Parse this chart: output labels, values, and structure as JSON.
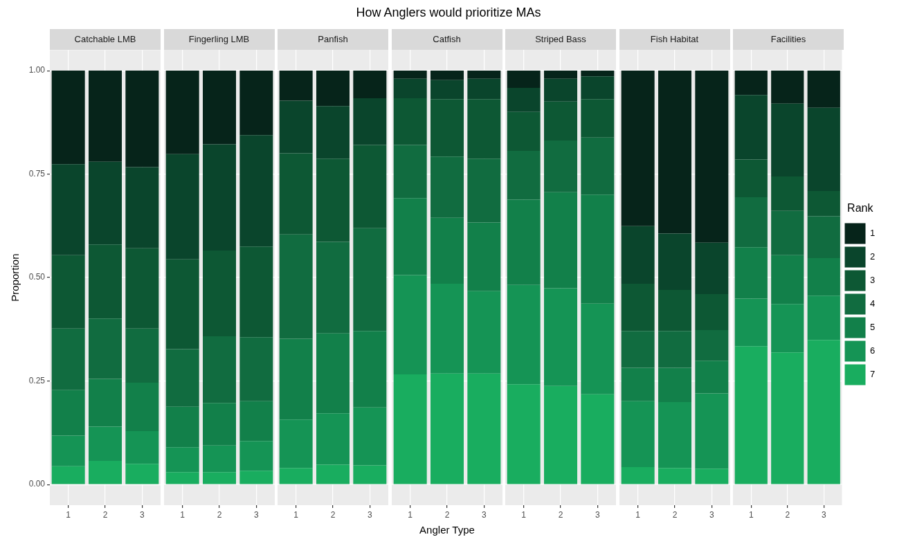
{
  "chart_data": [
    {
      "type": "bar",
      "title": "Catchable LMB",
      "ylabel": "Proportion",
      "categories": [
        "1",
        "2",
        "3"
      ],
      "stacked": true,
      "grid": true,
      "ylim": [
        -0.05,
        1.05
      ],
      "yticks": [
        {
          "value": 0,
          "label": "0.00"
        },
        {
          "value": 0.25,
          "label": "0.25"
        },
        {
          "value": 0.5,
          "label": "0.50"
        },
        {
          "value": 0.75,
          "label": "0.75"
        },
        {
          "value": 1,
          "label": "1.00"
        }
      ],
      "series": [
        {
          "color": "#19ad5f",
          "values": [
            0.044,
            0.057,
            0.05
          ]
        },
        {
          "color": "#159455",
          "values": [
            0.074,
            0.083,
            0.079
          ]
        },
        {
          "color": "#12804a",
          "values": [
            0.11,
            0.115,
            0.117
          ]
        },
        {
          "color": "#116c40",
          "values": [
            0.149,
            0.146,
            0.131
          ]
        },
        {
          "color": "#0d5834",
          "values": [
            0.177,
            0.179,
            0.194
          ]
        },
        {
          "color": "#0a452c",
          "values": [
            0.22,
            0.2,
            0.196
          ]
        },
        {
          "color": "#06241a",
          "values": [
            0.226,
            0.22,
            0.233
          ]
        }
      ]
    },
    {
      "type": "bar",
      "title": "Fingerling LMB",
      "categories": [
        "1",
        "2",
        "3"
      ],
      "stacked": true,
      "grid": true,
      "tick_labels": "x",
      "ylim": [
        -0.05,
        1.05
      ],
      "yticks": [
        0,
        0.25,
        0.5,
        0.75,
        1
      ],
      "series": [
        {
          "color": "#19ad5f",
          "values": [
            0.03,
            0.03,
            0.033
          ]
        },
        {
          "color": "#159455",
          "values": [
            0.06,
            0.064,
            0.072
          ]
        },
        {
          "color": "#12804a",
          "values": [
            0.098,
            0.103,
            0.096
          ]
        },
        {
          "color": "#116c40",
          "values": [
            0.139,
            0.161,
            0.155
          ]
        },
        {
          "color": "#0d5834",
          "values": [
            0.217,
            0.207,
            0.219
          ]
        },
        {
          "color": "#0a452c",
          "values": [
            0.254,
            0.257,
            0.269
          ]
        },
        {
          "color": "#06241a",
          "values": [
            0.202,
            0.178,
            0.156
          ]
        }
      ]
    },
    {
      "type": "bar",
      "title": "Panfish",
      "categories": [
        "1",
        "2",
        "3"
      ],
      "stacked": true,
      "grid": true,
      "tick_labels": "x",
      "ylim": [
        -0.05,
        1.05
      ],
      "yticks": [
        0,
        0.25,
        0.5,
        0.75,
        1
      ],
      "series": [
        {
          "color": "#19ad5f",
          "values": [
            0.04,
            0.048,
            0.046
          ]
        },
        {
          "color": "#159455",
          "values": [
            0.117,
            0.124,
            0.14
          ]
        },
        {
          "color": "#12804a",
          "values": [
            0.195,
            0.193,
            0.185
          ]
        },
        {
          "color": "#116c40",
          "values": [
            0.252,
            0.221,
            0.248
          ]
        },
        {
          "color": "#0d5834",
          "values": [
            0.196,
            0.201,
            0.201
          ]
        },
        {
          "color": "#0a452c",
          "values": [
            0.127,
            0.127,
            0.113
          ]
        },
        {
          "color": "#06241a",
          "values": [
            0.073,
            0.086,
            0.067
          ]
        }
      ]
    },
    {
      "type": "bar",
      "title": "Catfish",
      "xlabel": "Angler Type",
      "annotations": [
        "How Anglers would prioritize MAs"
      ],
      "categories": [
        "1",
        "2",
        "3"
      ],
      "stacked": true,
      "grid": true,
      "tick_labels": "x",
      "ylim": [
        -0.05,
        1.05
      ],
      "yticks": [
        0,
        0.25,
        0.5,
        0.75,
        1
      ],
      "series": [
        {
          "color": "#19ad5f",
          "values": [
            0.266,
            0.268,
            0.268
          ]
        },
        {
          "color": "#159455",
          "values": [
            0.24,
            0.217,
            0.199
          ]
        },
        {
          "color": "#12804a",
          "values": [
            0.186,
            0.159,
            0.166
          ]
        },
        {
          "color": "#116c40",
          "values": [
            0.128,
            0.148,
            0.154
          ]
        },
        {
          "color": "#0d5834",
          "values": [
            0.113,
            0.139,
            0.144
          ]
        },
        {
          "color": "#0a452c",
          "values": [
            0.047,
            0.046,
            0.049
          ]
        },
        {
          "color": "#06241a",
          "values": [
            0.02,
            0.023,
            0.02
          ]
        }
      ]
    },
    {
      "type": "bar",
      "title": "Striped Bass",
      "categories": [
        "1",
        "2",
        "3"
      ],
      "stacked": true,
      "grid": true,
      "tick_labels": "x",
      "ylim": [
        -0.05,
        1.05
      ],
      "yticks": [
        0,
        0.25,
        0.5,
        0.75,
        1
      ],
      "series": [
        {
          "color": "#19ad5f",
          "values": [
            0.242,
            0.238,
            0.218
          ]
        },
        {
          "color": "#159455",
          "values": [
            0.24,
            0.236,
            0.219
          ]
        },
        {
          "color": "#12804a",
          "values": [
            0.206,
            0.232,
            0.263
          ]
        },
        {
          "color": "#116c40",
          "values": [
            0.118,
            0.125,
            0.138
          ]
        },
        {
          "color": "#0d5834",
          "values": [
            0.094,
            0.094,
            0.093
          ]
        },
        {
          "color": "#0a452c",
          "values": [
            0.058,
            0.055,
            0.055
          ]
        },
        {
          "color": "#06241a",
          "values": [
            0.042,
            0.02,
            0.014
          ]
        }
      ]
    },
    {
      "type": "bar",
      "title": "Fish Habitat",
      "categories": [
        "1",
        "2",
        "3"
      ],
      "stacked": true,
      "grid": true,
      "tick_labels": "x",
      "ylim": [
        -0.05,
        1.05
      ],
      "yticks": [
        0,
        0.25,
        0.5,
        0.75,
        1
      ],
      "series": [
        {
          "color": "#19ad5f",
          "values": [
            0.042,
            0.04,
            0.038
          ]
        },
        {
          "color": "#159455",
          "values": [
            0.159,
            0.159,
            0.182
          ]
        },
        {
          "color": "#12804a",
          "values": [
            0.081,
            0.083,
            0.079
          ]
        },
        {
          "color": "#116c40",
          "values": [
            0.089,
            0.089,
            0.074
          ]
        },
        {
          "color": "#0d5834",
          "values": [
            0.114,
            0.099,
            0.087
          ]
        },
        {
          "color": "#0a452c",
          "values": [
            0.139,
            0.136,
            0.124
          ]
        },
        {
          "color": "#06241a",
          "values": [
            0.376,
            0.394,
            0.416
          ]
        }
      ]
    },
    {
      "type": "bar",
      "title": "Facilities",
      "legend": "right",
      "legend_title": "Rank",
      "categories": [
        "1",
        "2",
        "3"
      ],
      "stacked": true,
      "grid": true,
      "tick_labels": "x",
      "ylim": [
        -0.05,
        1.05
      ],
      "yticks": [
        0,
        0.25,
        0.5,
        0.75,
        1
      ],
      "series": [
        {
          "name": "7",
          "color": "#19ad5f",
          "values": [
            0.334,
            0.319,
            0.349
          ]
        },
        {
          "name": "6",
          "color": "#159455",
          "values": [
            0.115,
            0.117,
            0.107
          ]
        },
        {
          "name": "5",
          "color": "#12804a",
          "values": [
            0.124,
            0.118,
            0.091
          ]
        },
        {
          "name": "4",
          "color": "#116c40",
          "values": [
            0.121,
            0.107,
            0.101
          ]
        },
        {
          "name": "3",
          "color": "#0d5834",
          "values": [
            0.091,
            0.083,
            0.061
          ]
        },
        {
          "name": "2",
          "color": "#0a452c",
          "values": [
            0.156,
            0.176,
            0.201
          ]
        },
        {
          "name": "1",
          "color": "#06241a",
          "values": [
            0.059,
            0.08,
            0.09
          ]
        }
      ]
    }
  ]
}
